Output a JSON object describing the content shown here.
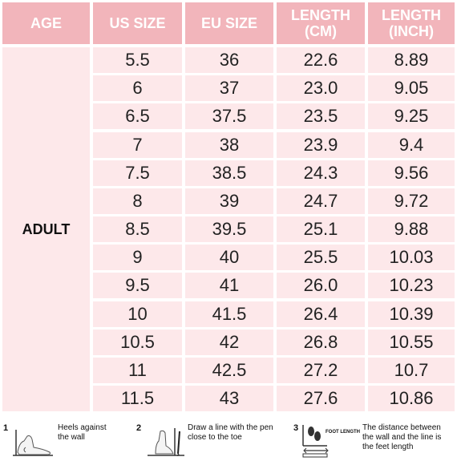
{
  "headers": [
    "AGE",
    "US SIZE",
    "EU SIZE",
    "LENGTH\n(CM)",
    "LENGTH\n(INCH)"
  ],
  "age_group": "ADULT",
  "rows": [
    [
      "5.5",
      "36",
      "22.6",
      "8.89"
    ],
    [
      "6",
      "37",
      "23.0",
      "9.05"
    ],
    [
      "6.5",
      "37.5",
      "23.5",
      "9.25"
    ],
    [
      "7",
      "38",
      "23.9",
      "9.4"
    ],
    [
      "7.5",
      "38.5",
      "24.3",
      "9.56"
    ],
    [
      "8",
      "39",
      "24.7",
      "9.72"
    ],
    [
      "8.5",
      "39.5",
      "25.1",
      "9.88"
    ],
    [
      "9",
      "40",
      "25.5",
      "10.03"
    ],
    [
      "9.5",
      "41",
      "26.0",
      "10.23"
    ],
    [
      "10",
      "41.5",
      "26.4",
      "10.39"
    ],
    [
      "10.5",
      "42",
      "26.8",
      "10.55"
    ],
    [
      "11",
      "42.5",
      "27.2",
      "10.7"
    ],
    [
      "11.5",
      "43",
      "27.6",
      "10.86"
    ]
  ],
  "instructions": [
    {
      "number": "1",
      "text": "Heels against\nthe wall"
    },
    {
      "number": "2",
      "text": "Draw a line with the pen\nclose to the toe"
    },
    {
      "number": "3",
      "text": "The distance between\nthe wall and the line is\nthe feet length",
      "diagram_label": "FOOT LENGTH"
    }
  ],
  "colors": {
    "header": "#f2b5bb",
    "cell": "#fde8ea",
    "header_text": "#ffffff"
  }
}
